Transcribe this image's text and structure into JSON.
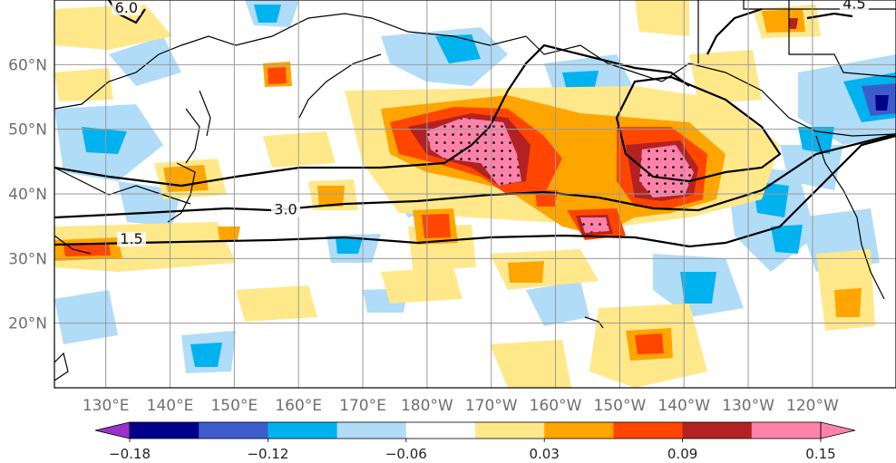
{
  "map": {
    "lat_ticks": [
      {
        "lat": 60,
        "label": "60°N"
      },
      {
        "lat": 50,
        "label": "50°N"
      },
      {
        "lat": 40,
        "label": "40°N"
      },
      {
        "lat": 30,
        "label": "30°N"
      },
      {
        "lat": 20,
        "label": "20°N"
      }
    ],
    "lon_ticks": [
      {
        "lon": 130,
        "label": "130°E"
      },
      {
        "lon": 140,
        "label": "140°E"
      },
      {
        "lon": 150,
        "label": "150°E"
      },
      {
        "lon": 160,
        "label": "160°E"
      },
      {
        "lon": 170,
        "label": "170°E"
      },
      {
        "lon": 180,
        "label": "180°W"
      },
      {
        "lon": 190,
        "label": "170°W"
      },
      {
        "lon": 200,
        "label": "160°W"
      },
      {
        "lon": 210,
        "label": "150°W"
      },
      {
        "lon": 220,
        "label": "140°W"
      },
      {
        "lon": 230,
        "label": "130°W"
      },
      {
        "lon": 240,
        "label": "120°W"
      }
    ],
    "lon_range": [
      122,
      253
    ],
    "lat_range": [
      10,
      70
    ],
    "contour_labels": [
      {
        "text": "6.0",
        "lon": 133.2,
        "lat": 68.2
      },
      {
        "text": "3.0",
        "lon": 158.0,
        "lat": 37.0
      },
      {
        "text": "1.5",
        "lon": 134.0,
        "lat": 32.4
      },
      {
        "text": "4.5",
        "lon": 246.5,
        "lat": 68.8
      }
    ]
  },
  "colorbar": {
    "levels": [
      -0.18,
      -0.15,
      -0.12,
      -0.09,
      -0.06,
      -0.03,
      0.03,
      0.06,
      0.09,
      0.12,
      0.15
    ],
    "colors": [
      "#9932cc",
      "#00008b",
      "#3d5ccc",
      "#00b2ee",
      "#b0dcf8",
      "#ffffff",
      "#ffe88a",
      "#ffa500",
      "#ff4500",
      "#b22222",
      "#ff82ab"
    ],
    "under_color": "#9932cc",
    "over_color": "#ff82ab",
    "tick_labels": [
      {
        "value": -0.18,
        "label": "−0.18"
      },
      {
        "value": -0.12,
        "label": "−0.12"
      },
      {
        "value": -0.06,
        "label": "−0.06"
      },
      {
        "value": 0.03,
        "label": "0.03"
      },
      {
        "value": 0.09,
        "label": "0.09"
      },
      {
        "value": 0.15,
        "label": "0.15"
      }
    ]
  },
  "colors": {
    "grid": "#9a9a9a",
    "coast": "#000000",
    "contour": "#000000"
  }
}
